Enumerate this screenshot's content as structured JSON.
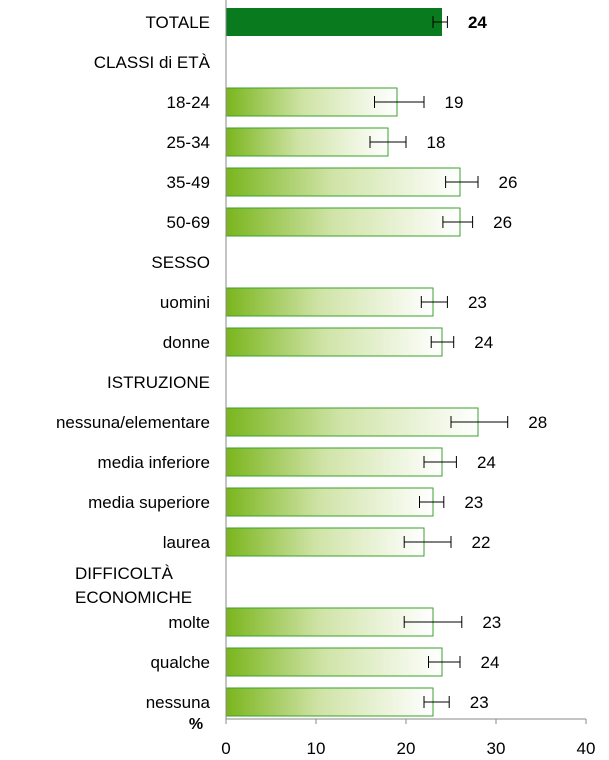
{
  "chart_data": {
    "type": "bar",
    "orientation": "horizontal",
    "rows": [
      {
        "label": "TOTALE",
        "kind": "total",
        "value": 24,
        "err_low": 23,
        "err_high": 24.6
      },
      {
        "label": "CLASSI di ETÀ",
        "kind": "header"
      },
      {
        "label": "18-24",
        "kind": "bar",
        "value": 19,
        "err_low": 16.5,
        "err_high": 22
      },
      {
        "label": "25-34",
        "kind": "bar",
        "value": 18,
        "err_low": 16,
        "err_high": 20
      },
      {
        "label": "35-49",
        "kind": "bar",
        "value": 26,
        "err_low": 24.4,
        "err_high": 28
      },
      {
        "label": "50-69",
        "kind": "bar",
        "value": 26,
        "err_low": 24.1,
        "err_high": 27.4
      },
      {
        "label": "SESSO",
        "kind": "header"
      },
      {
        "label": "uomini",
        "kind": "bar",
        "value": 23,
        "err_low": 21.7,
        "err_high": 24.6
      },
      {
        "label": "donne",
        "kind": "bar",
        "value": 24,
        "err_low": 22.8,
        "err_high": 25.3
      },
      {
        "label": "ISTRUZIONE",
        "kind": "header"
      },
      {
        "label": "nessuna/elementare",
        "kind": "bar",
        "value": 28,
        "err_low": 25,
        "err_high": 31.3
      },
      {
        "label": "media inferiore",
        "kind": "bar",
        "value": 24,
        "err_low": 22,
        "err_high": 25.6
      },
      {
        "label": "media superiore",
        "kind": "bar",
        "value": 23,
        "err_low": 21.5,
        "err_high": 24.2
      },
      {
        "label": "laurea",
        "kind": "bar",
        "value": 22,
        "err_low": 19.8,
        "err_high": 25
      },
      {
        "label": "DIFFICOLTÀ\nECONOMICHE",
        "kind": "header"
      },
      {
        "label": "molte",
        "kind": "bar",
        "value": 23,
        "err_low": 19.8,
        "err_high": 26.2
      },
      {
        "label": "qualche",
        "kind": "bar",
        "value": 24,
        "err_low": 22.5,
        "err_high": 26
      },
      {
        "label": "nessuna",
        "kind": "bar",
        "value": 23,
        "err_low": 22,
        "err_high": 24.8
      }
    ],
    "axis": {
      "min": 0,
      "max": 40,
      "ticks": [
        0,
        10,
        20,
        30,
        40
      ],
      "unit_label": "%"
    },
    "colors": {
      "total": "#0a7a1f",
      "bar_dark": "#7ab51d",
      "bar_light": "#ffffff",
      "bar_border": "#3aa12b",
      "error": "#000000"
    }
  }
}
